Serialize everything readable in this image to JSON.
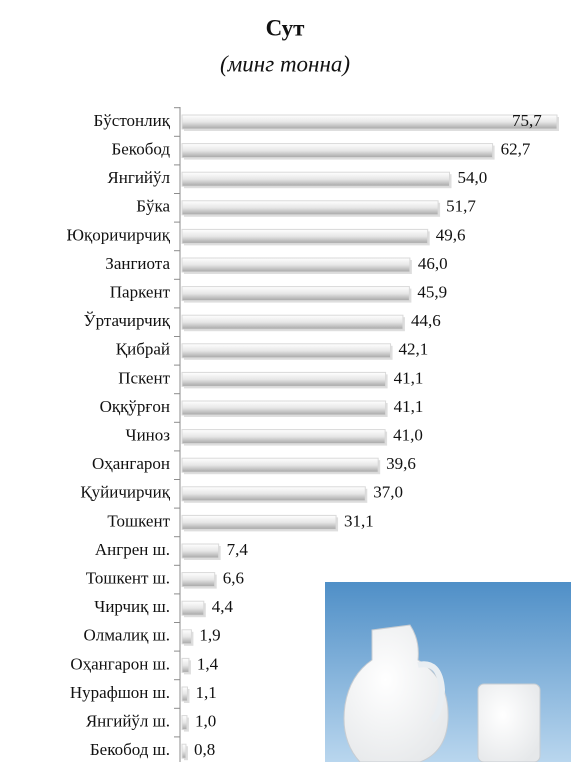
{
  "chart_data": {
    "type": "bar",
    "orientation": "horizontal",
    "title": "Сут",
    "subtitle": "(минг тонна)",
    "categories": [
      "Бўстонлиқ",
      "Бекобод",
      "Янгийўл",
      "Бўка",
      "Юқоричирчиқ",
      "Зангиота",
      "Паркент",
      "Ўртачирчиқ",
      "Қибрай",
      "Пскент",
      "Оққўрғон",
      "Чиноз",
      "Оҳангарон",
      "Қуйичирчиқ",
      "Тошкент",
      "Ангрен ш.",
      "Тошкент ш.",
      "Чирчиқ ш.",
      "Олмалиқ ш.",
      "Оҳангарон ш.",
      "Нурафшон ш.",
      "Янгийўл ш.",
      "Бекобод ш."
    ],
    "values": [
      75.7,
      62.7,
      54.0,
      51.7,
      49.6,
      46.0,
      45.9,
      44.6,
      42.1,
      41.1,
      41.1,
      41.0,
      39.6,
      37.0,
      31.1,
      7.4,
      6.6,
      4.4,
      1.9,
      1.4,
      1.1,
      1.0,
      0.8
    ],
    "value_labels": [
      "75,7",
      "62,7",
      "54,0",
      "51,7",
      "49,6",
      "46,0",
      "45,9",
      "44,6",
      "42,1",
      "41,1",
      "41,1",
      "41,0",
      "39,6",
      "37,0",
      "31,1",
      "7,4",
      "6,6",
      "4,4",
      "1,9",
      "1,4",
      "1,1",
      "1,0",
      "0,8"
    ],
    "color": "#d9d9d9"
  }
}
